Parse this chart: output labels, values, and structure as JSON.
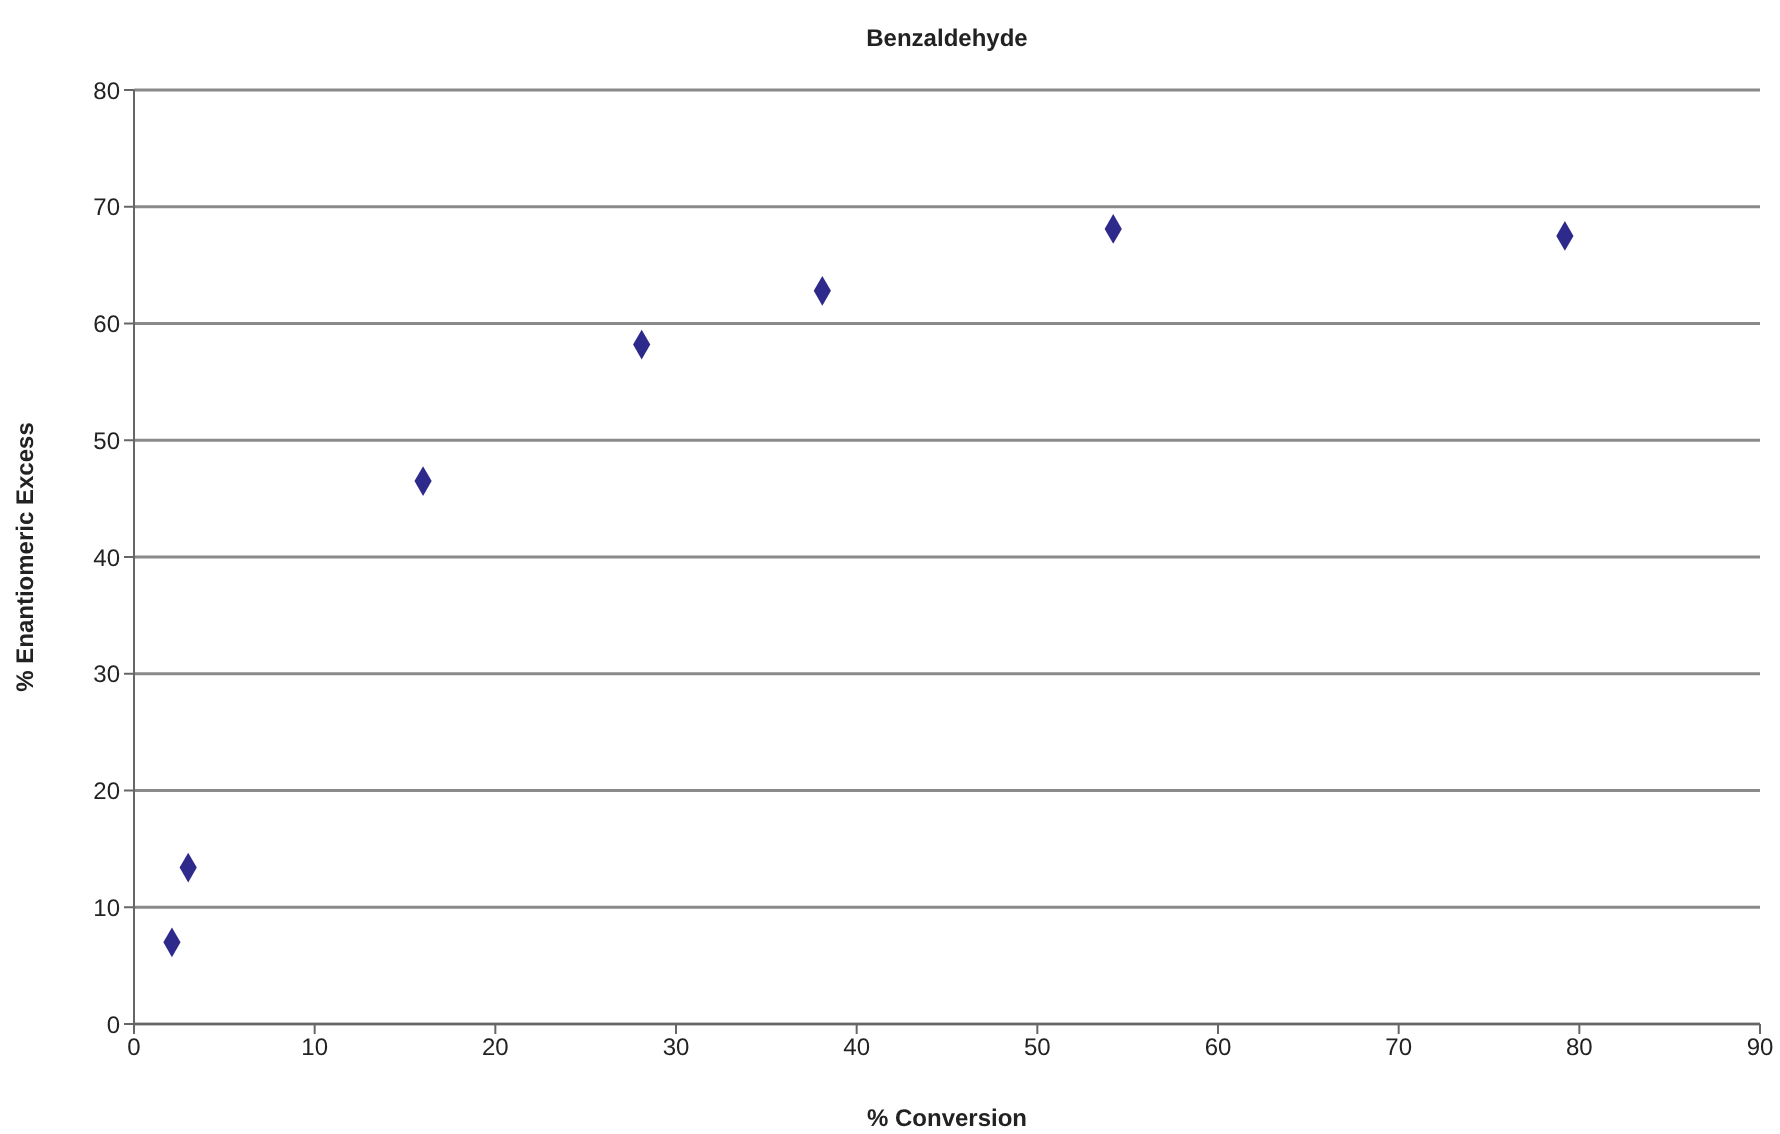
{
  "chart_data": {
    "type": "scatter",
    "title": "Benzaldehyde",
    "xlabel": "% Conversion",
    "ylabel": "% Enantiomeric Excess",
    "x": [
      2.1,
      3.0,
      16.0,
      28.1,
      38.1,
      54.2,
      79.2
    ],
    "series": [
      {
        "color": "#2e2a8c",
        "values": [
          7.0,
          13.4,
          46.5,
          58.2,
          62.8,
          68.1,
          67.5
        ]
      }
    ],
    "xlim": [
      0,
      90
    ],
    "xticks": [
      0,
      10,
      20,
      30,
      40,
      50,
      60,
      70,
      80,
      90
    ],
    "ylim": [
      0,
      80
    ],
    "yticks": [
      0,
      10,
      20,
      30,
      40,
      50,
      60,
      70,
      80
    ],
    "grid": "y",
    "legend": false,
    "marker": "diamond"
  }
}
